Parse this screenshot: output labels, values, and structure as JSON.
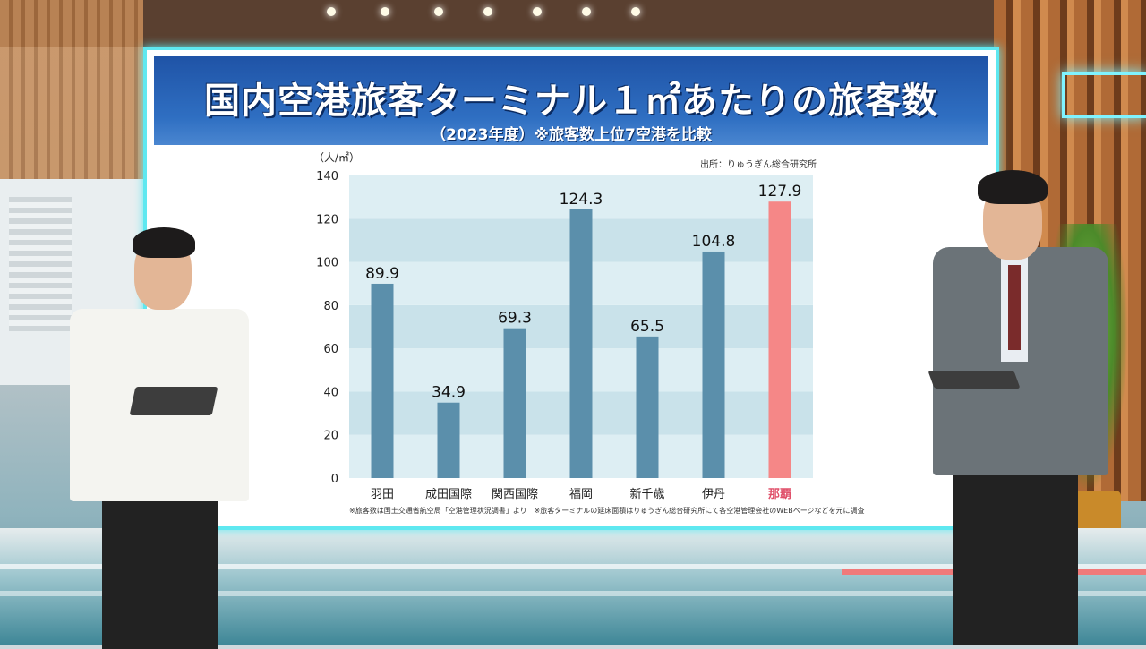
{
  "screen": {
    "title": "国内空港旅客ターミナル１㎡あたりの旅客数",
    "subtitle": "（2023年度）※旅客数上位7空港を比較",
    "source": "出所：りゅうぎん総合研究所",
    "footnote": "※旅客数は国土交通省航空局「空港管理状況調書」より　※旅客ターミナルの延床面積はりゅうぎん総合研究所にて各空港管理会社のWEBページなどを元に調査"
  },
  "colors": {
    "bar": "#5b8fab",
    "highlight_bar": "#f58787",
    "highlight_label": "#e0506a",
    "header": "#2a62b6",
    "plot_bg": "#ddeef3",
    "frame": "#5fe8f0"
  },
  "chart_data": {
    "type": "bar",
    "title": "国内空港旅客ターミナル１㎡あたりの旅客数",
    "subtitle": "（2023年度）※旅客数上位7空港を比較",
    "ylabel": "（人/㎡）",
    "xlabel": "",
    "ylim": [
      0,
      140
    ],
    "yticks": [
      0,
      20,
      40,
      60,
      80,
      100,
      120,
      140
    ],
    "categories": [
      "羽田",
      "成田国際",
      "関西国際",
      "福岡",
      "新千歳",
      "伊丹",
      "那覇"
    ],
    "values": [
      89.9,
      34.9,
      69.3,
      124.3,
      65.5,
      104.8,
      127.9
    ],
    "value_labels": [
      "89.9",
      "34.9",
      "69.3",
      "124.3",
      "65.5",
      "104.8",
      "127.9"
    ],
    "highlight_index": 6,
    "grid": "horizontal bands",
    "legend": "none"
  }
}
